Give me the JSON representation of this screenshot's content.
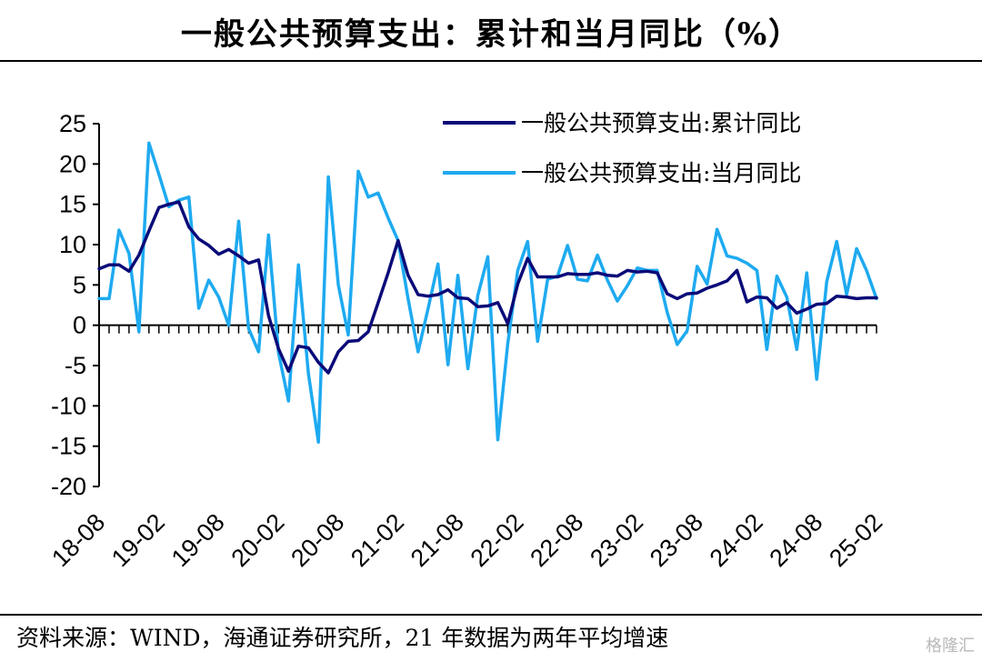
{
  "title": "一般公共预算支出：累计和当月同比（%）",
  "source": "资料来源：WIND，海通证券研究所，21 年数据为两年平均增速",
  "watermark": "格隆汇",
  "chart_data": {
    "type": "line",
    "title": "一般公共预算支出：累计和当月同比（%）",
    "ylim": [
      -20,
      25
    ],
    "yticks": [
      25,
      20,
      15,
      10,
      5,
      0,
      -5,
      -10,
      -15,
      -20
    ],
    "xtick_labels": [
      "18-08",
      "19-02",
      "19-08",
      "20-02",
      "20-08",
      "21-02",
      "21-08",
      "22-02",
      "22-08",
      "23-02",
      "23-08",
      "24-02",
      "24-08",
      "25-02"
    ],
    "x": [
      "18-08",
      "18-09",
      "18-10",
      "18-11",
      "18-12",
      "19-01",
      "19-02",
      "19-03",
      "19-04",
      "19-05",
      "19-06",
      "19-07",
      "19-08",
      "19-09",
      "19-10",
      "19-11",
      "19-12",
      "20-01",
      "20-02",
      "20-03",
      "20-04",
      "20-05",
      "20-06",
      "20-07",
      "20-08",
      "20-09",
      "20-10",
      "20-11",
      "20-12",
      "21-01",
      "21-02",
      "21-03",
      "21-04",
      "21-05",
      "21-06",
      "21-07",
      "21-08",
      "21-09",
      "21-10",
      "21-11",
      "21-12",
      "22-01",
      "22-02",
      "22-03",
      "22-04",
      "22-05",
      "22-06",
      "22-07",
      "22-08",
      "22-09",
      "22-10",
      "22-11",
      "22-12",
      "23-01",
      "23-02",
      "23-03",
      "23-04",
      "23-05",
      "23-06",
      "23-07",
      "23-08",
      "23-09",
      "23-10",
      "23-11",
      "23-12",
      "24-01",
      "24-02",
      "24-03",
      "24-04",
      "24-05",
      "24-06",
      "24-07",
      "24-08",
      "24-09",
      "24-10",
      "24-11",
      "24-12",
      "25-01",
      "25-02"
    ],
    "legend_position": "top-right",
    "series": [
      {
        "name": "一般公共预算支出:累计同比",
        "color": "#0a0a78",
        "values": [
          7.0,
          7.5,
          7.5,
          6.7,
          8.7,
          11.7,
          14.6,
          15.0,
          15.3,
          12.2,
          10.7,
          9.9,
          8.8,
          9.4,
          8.6,
          7.7,
          8.1,
          1.2,
          -2.9,
          -5.7,
          -2.6,
          -2.8,
          -4.6,
          -5.9,
          -3.3,
          -2.0,
          -1.9,
          -0.8,
          2.8,
          6.5,
          10.5,
          6.2,
          3.8,
          3.6,
          3.8,
          4.4,
          3.4,
          3.3,
          2.3,
          2.4,
          2.8,
          0.2,
          5.1,
          8.3,
          6.0,
          6.0,
          6.0,
          6.4,
          6.3,
          6.3,
          6.5,
          6.2,
          6.1,
          6.8,
          6.6,
          6.7,
          6.5,
          3.9,
          3.3,
          3.9,
          4.0,
          4.6,
          5.0,
          5.5,
          6.8,
          2.9,
          3.5,
          3.4,
          2.1,
          2.8,
          1.5,
          2.0,
          2.6,
          2.7,
          3.6,
          3.5,
          3.3,
          3.4,
          3.4
        ]
      },
      {
        "name": "一般公共预算支出:当月同比",
        "color": "#1eaaf0",
        "values": [
          3.3,
          3.3,
          11.8,
          8.9,
          -0.8,
          22.6,
          18.7,
          14.7,
          15.5,
          15.9,
          2.1,
          5.6,
          3.5,
          0.0,
          12.9,
          -0.4,
          -3.3,
          11.2,
          -3.4,
          -9.4,
          7.5,
          -6.0,
          -14.5,
          18.4,
          5.0,
          -1.2,
          19.1,
          15.9,
          16.4,
          13.3,
          10.5,
          3.3,
          -3.3,
          2.0,
          7.6,
          -4.9,
          6.2,
          -5.4,
          3.7,
          8.5,
          -14.2,
          -2.3,
          6.8,
          10.4,
          -2.0,
          5.7,
          6.1,
          9.9,
          5.7,
          5.5,
          8.7,
          5.6,
          3.0,
          4.9,
          7.1,
          6.8,
          6.8,
          1.6,
          -2.4,
          -0.7,
          7.3,
          5.1,
          11.9,
          8.6,
          8.3,
          7.7,
          6.8,
          -3.0,
          6.1,
          3.5,
          -3.0,
          6.5,
          -6.7,
          5.4,
          10.4,
          3.8,
          9.5,
          6.8,
          3.3
        ]
      }
    ]
  }
}
